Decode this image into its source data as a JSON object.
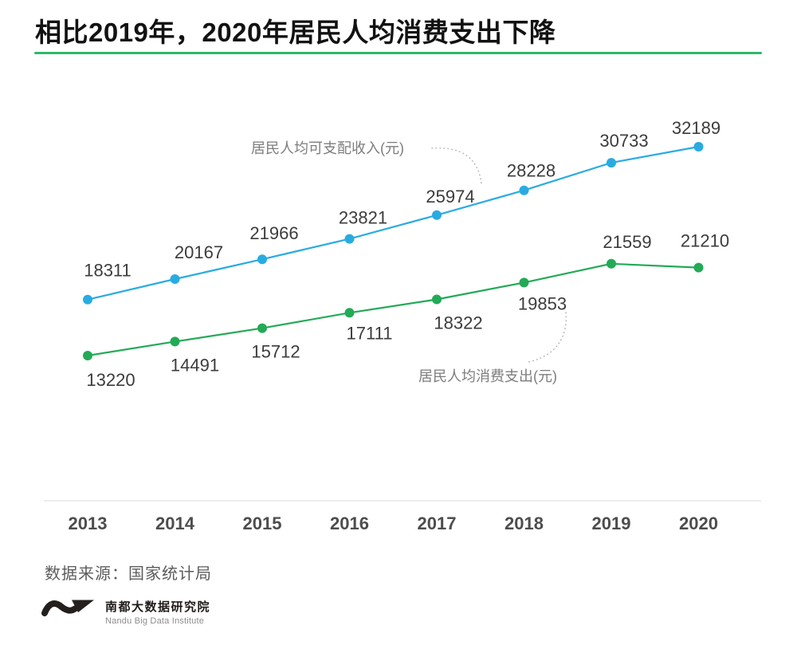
{
  "title": "相比2019年，2020年居民人均消费支出下降",
  "colors": {
    "accent_green": "#2eb96a",
    "income_blue": "#29abe2",
    "expenditure_green": "#22aa57",
    "label_text": "#3c3c3c",
    "tick_text": "#4d4d4d",
    "annotation_text": "#7d7d7d"
  },
  "chart_data": {
    "type": "line",
    "x": [
      "2013",
      "2014",
      "2015",
      "2016",
      "2017",
      "2018",
      "2019",
      "2020"
    ],
    "series": [
      {
        "name": "居民人均可支配收入(元)",
        "color": "#29abe2",
        "values": [
          18311,
          20167,
          21966,
          23821,
          25974,
          28228,
          30733,
          32189
        ],
        "label_offsets": [
          [
            25,
            -29
          ],
          [
            30,
            -26
          ],
          [
            15,
            -25
          ],
          [
            17,
            -19
          ],
          [
            17,
            -16
          ],
          [
            9,
            -17
          ],
          [
            16,
            -20
          ],
          [
            -3,
            -16
          ]
        ]
      },
      {
        "name": "居民人均消费支出(元)",
        "color": "#22aa57",
        "values": [
          13220,
          14491,
          15712,
          17111,
          18322,
          19853,
          21559,
          21210
        ],
        "label_offsets": [
          [
            29,
            38
          ],
          [
            25,
            37
          ],
          [
            17,
            37
          ],
          [
            25,
            33
          ],
          [
            27,
            37
          ],
          [
            23,
            34
          ],
          [
            20,
            -20
          ],
          [
            8,
            -26
          ]
        ]
      }
    ],
    "ylim": [
      13220,
      32189
    ],
    "xlabel": "",
    "ylabel": "",
    "grid": false,
    "legend_position": "annotation-labels-on-chart"
  },
  "source": {
    "label": "数据来源：国家统计局"
  },
  "logo": {
    "name_cn": "南都大数据研究院",
    "name_en": "Nandu Big Data Institute"
  }
}
